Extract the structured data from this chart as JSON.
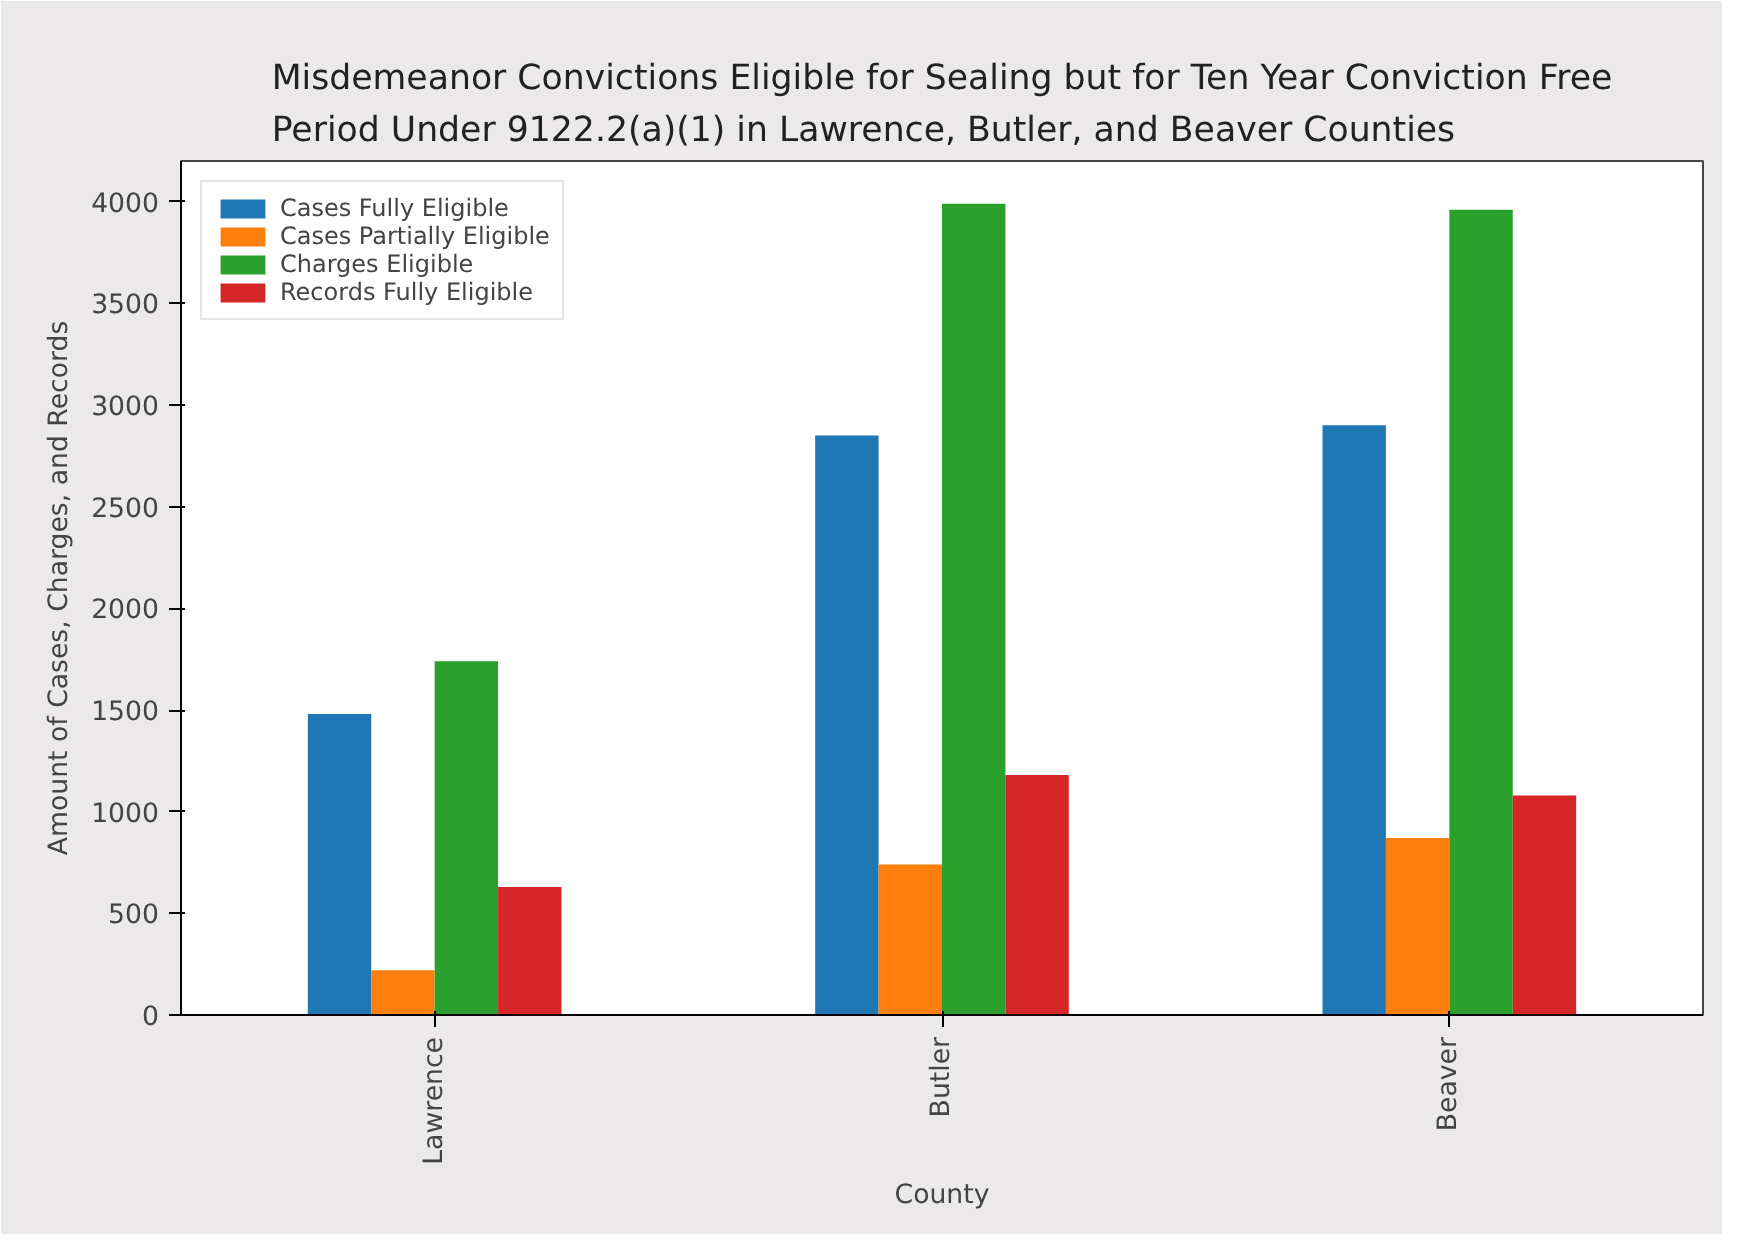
{
  "chart_data": {
    "type": "bar",
    "title": "Misdemeanor Convictions Eligible for Sealing but for Ten Year Conviction Free\nPeriod Under 9122.2(a)(1) in Lawrence, Butler, and Beaver Counties",
    "xlabel": "County",
    "ylabel": "Amount of Cases, Charges, and Records",
    "categories": [
      "Lawrence",
      "Butler",
      "Beaver"
    ],
    "series": [
      {
        "name": "Cases Fully Eligible",
        "color": "#1f77b4",
        "values": [
          1480,
          2850,
          2900
        ]
      },
      {
        "name": "Cases Partially Eligible",
        "color": "#ff7f0e",
        "values": [
          220,
          740,
          870
        ]
      },
      {
        "name": "Charges Eligible",
        "color": "#2ca02c",
        "values": [
          1740,
          3990,
          3960
        ]
      },
      {
        "name": "Records Fully Eligible",
        "color": "#d62728",
        "values": [
          630,
          1180,
          1080
        ]
      }
    ],
    "ylim": [
      0,
      4200
    ],
    "yticks": [
      0,
      500,
      1000,
      1500,
      2000,
      2500,
      3000,
      3500,
      4000
    ],
    "grid": false,
    "legend": "top left"
  }
}
